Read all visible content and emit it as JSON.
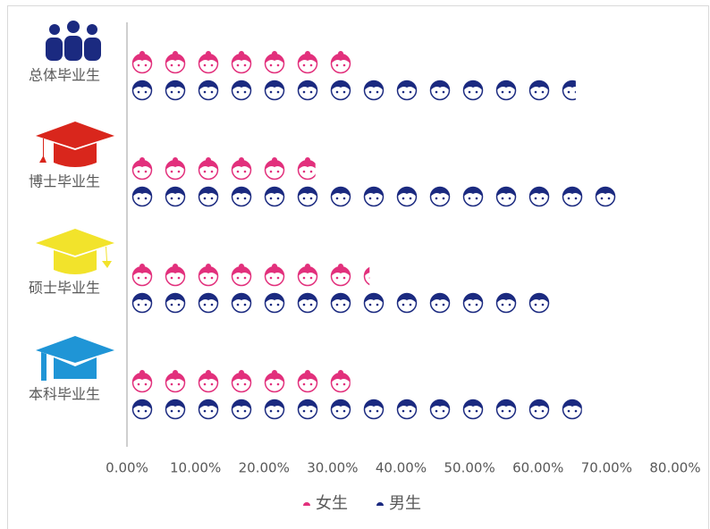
{
  "chart_data": {
    "type": "pictograph-bar",
    "categories": [
      "总体毕业生",
      "博士毕业生",
      "硕士毕业生",
      "本科毕业生"
    ],
    "series": [
      {
        "name": "女生",
        "color": "#e2307c",
        "values": [
          33.2,
          27.5,
          35.4,
          32.6
        ]
      },
      {
        "name": "男生",
        "color": "#1b2a80",
        "values": [
          65.5,
          71.5,
          62.2,
          66.4
        ]
      }
    ],
    "xlim": [
      0,
      80
    ],
    "xticks": [
      {
        "value": 0,
        "label": "0.00%"
      },
      {
        "value": 10,
        "label": "10.00%"
      },
      {
        "value": 20,
        "label": "20.00%"
      },
      {
        "value": 30,
        "label": "30.00%"
      },
      {
        "value": 40,
        "label": "40.00%"
      },
      {
        "value": 50,
        "label": "50.00%"
      },
      {
        "value": 60,
        "label": "60.00%"
      },
      {
        "value": 70,
        "label": "70.00%"
      },
      {
        "value": 80,
        "label": "80.00%"
      }
    ],
    "legend": "bottom"
  }
}
